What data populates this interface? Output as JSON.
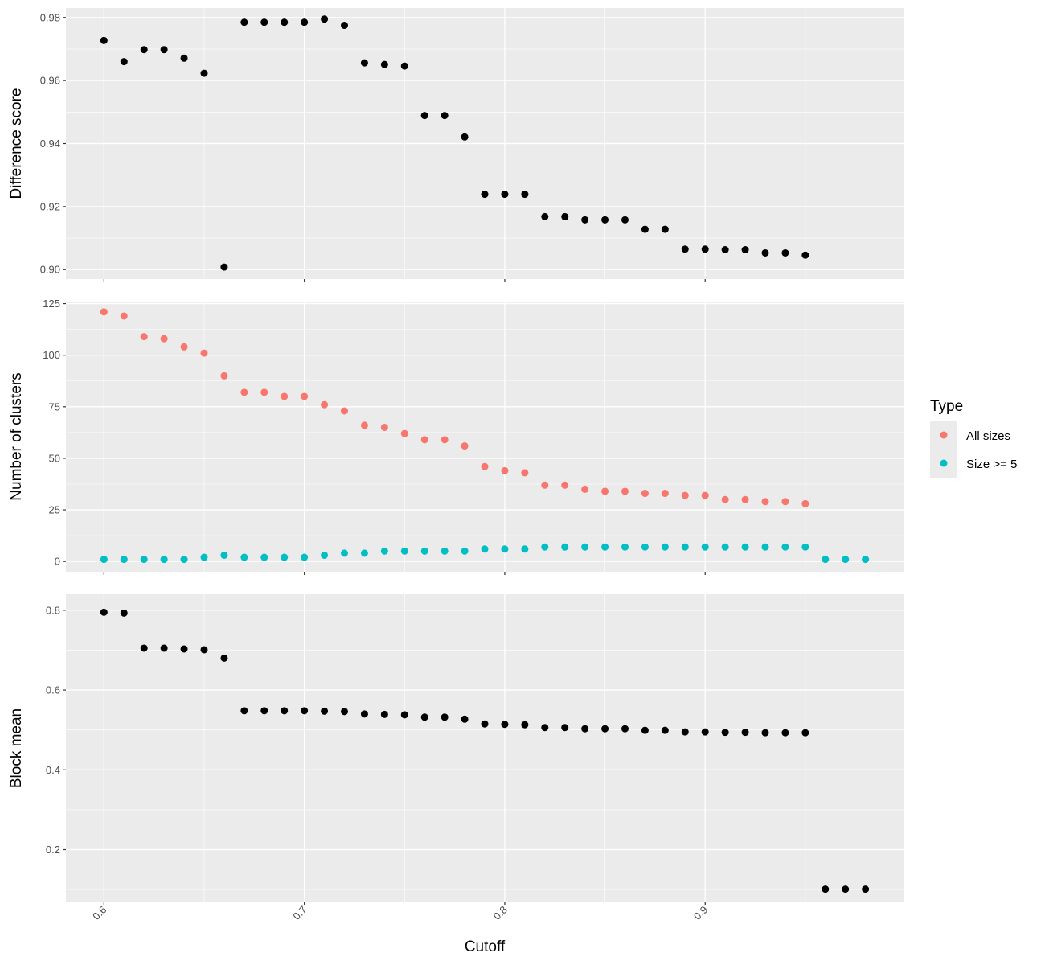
{
  "chart_data": [
    {
      "type": "scatter",
      "xlabel": "",
      "ylabel": "Difference score",
      "xlim": [
        0.581,
        0.999
      ],
      "ylim": [
        0.897,
        0.983
      ],
      "y_ticks": [
        0.9,
        0.92,
        0.94,
        0.96,
        0.98
      ],
      "y_tick_labels": [
        "0.90",
        "0.92",
        "0.94",
        "0.96",
        "0.98"
      ],
      "grid": true,
      "series": [
        {
          "color": "#000000",
          "x": [
            0.6,
            0.61,
            0.62,
            0.63,
            0.64,
            0.65,
            0.66,
            0.67,
            0.68,
            0.69,
            0.7,
            0.71,
            0.72,
            0.73,
            0.74,
            0.75,
            0.76,
            0.77,
            0.78,
            0.79,
            0.8,
            0.81,
            0.82,
            0.83,
            0.84,
            0.85,
            0.86,
            0.87,
            0.88,
            0.89,
            0.9,
            0.91,
            0.92,
            0.93,
            0.94,
            0.95
          ],
          "y": [
            0.9727,
            0.966,
            0.9698,
            0.9698,
            0.9671,
            0.9623,
            0.9008,
            0.9785,
            0.9785,
            0.9785,
            0.9785,
            0.9795,
            0.9775,
            0.9656,
            0.9651,
            0.9646,
            0.9489,
            0.9489,
            0.9421,
            0.9239,
            0.9239,
            0.9239,
            0.9168,
            0.9168,
            0.9158,
            0.9158,
            0.9158,
            0.9128,
            0.9128,
            0.9065,
            0.9065,
            0.9063,
            0.9063,
            0.9053,
            0.9053,
            0.9046
          ]
        }
      ]
    },
    {
      "type": "scatter",
      "xlabel": "",
      "ylabel": "Number of clusters",
      "xlim": [
        0.581,
        0.999
      ],
      "ylim": [
        -5,
        126
      ],
      "y_ticks": [
        0,
        25,
        50,
        75,
        100,
        125
      ],
      "y_tick_labels": [
        "0",
        "25",
        "50",
        "75",
        "100",
        "125"
      ],
      "grid": true,
      "legend": {
        "title": "Type",
        "position": "right",
        "entries": [
          {
            "label": "All sizes",
            "color": "#F8766D"
          },
          {
            "label": "Size >= 5",
            "color": "#00BFC4"
          }
        ]
      },
      "series": [
        {
          "name": "All sizes",
          "color": "#F8766D",
          "x": [
            0.6,
            0.61,
            0.62,
            0.63,
            0.64,
            0.65,
            0.66,
            0.67,
            0.68,
            0.69,
            0.7,
            0.71,
            0.72,
            0.73,
            0.74,
            0.75,
            0.76,
            0.77,
            0.78,
            0.79,
            0.8,
            0.81,
            0.82,
            0.83,
            0.84,
            0.85,
            0.86,
            0.87,
            0.88,
            0.89,
            0.9,
            0.91,
            0.92,
            0.93,
            0.94,
            0.95
          ],
          "y": [
            121,
            119,
            109,
            108,
            104,
            101,
            90,
            82,
            82,
            80,
            80,
            76,
            73,
            66,
            65,
            62,
            59,
            59,
            56,
            46,
            44,
            43,
            37,
            37,
            35,
            34,
            34,
            33,
            33,
            32,
            32,
            30,
            30,
            29,
            29,
            28
          ]
        },
        {
          "name": "Size >= 5",
          "color": "#00BFC4",
          "x": [
            0.6,
            0.61,
            0.62,
            0.63,
            0.64,
            0.65,
            0.66,
            0.67,
            0.68,
            0.69,
            0.7,
            0.71,
            0.72,
            0.73,
            0.74,
            0.75,
            0.76,
            0.77,
            0.78,
            0.79,
            0.8,
            0.81,
            0.82,
            0.83,
            0.84,
            0.85,
            0.86,
            0.87,
            0.88,
            0.89,
            0.9,
            0.91,
            0.92,
            0.93,
            0.94,
            0.95,
            0.96,
            0.97,
            0.98
          ],
          "y": [
            1,
            1,
            1,
            1,
            1,
            2,
            3,
            2,
            2,
            2,
            2,
            3,
            4,
            4,
            5,
            5,
            5,
            5,
            5,
            6,
            6,
            6,
            7,
            7,
            7,
            7,
            7,
            7,
            7,
            7,
            7,
            7,
            7,
            7,
            7,
            7,
            1,
            1,
            1
          ]
        }
      ]
    },
    {
      "type": "scatter",
      "xlabel": "Cutoff",
      "ylabel": "Block mean",
      "xlim": [
        0.581,
        0.999
      ],
      "ylim": [
        0.068,
        0.84
      ],
      "x_ticks": [
        0.6,
        0.7,
        0.8,
        0.9
      ],
      "x_tick_labels": [
        "0.6",
        "0.7",
        "0.8",
        "0.9"
      ],
      "y_ticks": [
        0.2,
        0.4,
        0.6,
        0.8
      ],
      "y_tick_labels": [
        "0.2",
        "0.4",
        "0.6",
        "0.8"
      ],
      "grid": true,
      "series": [
        {
          "color": "#000000",
          "x": [
            0.6,
            0.61,
            0.62,
            0.63,
            0.64,
            0.65,
            0.66,
            0.67,
            0.68,
            0.69,
            0.7,
            0.71,
            0.72,
            0.73,
            0.74,
            0.75,
            0.76,
            0.77,
            0.78,
            0.79,
            0.8,
            0.81,
            0.82,
            0.83,
            0.84,
            0.85,
            0.86,
            0.87,
            0.88,
            0.89,
            0.9,
            0.91,
            0.92,
            0.93,
            0.94,
            0.95,
            0.96,
            0.97,
            0.98
          ],
          "y": [
            0.795,
            0.793,
            0.705,
            0.705,
            0.703,
            0.701,
            0.68,
            0.548,
            0.548,
            0.548,
            0.548,
            0.547,
            0.546,
            0.54,
            0.539,
            0.538,
            0.532,
            0.532,
            0.527,
            0.515,
            0.514,
            0.513,
            0.506,
            0.506,
            0.503,
            0.503,
            0.503,
            0.499,
            0.499,
            0.495,
            0.495,
            0.494,
            0.494,
            0.493,
            0.493,
            0.493,
            0.101,
            0.101,
            0.101
          ]
        }
      ]
    }
  ]
}
